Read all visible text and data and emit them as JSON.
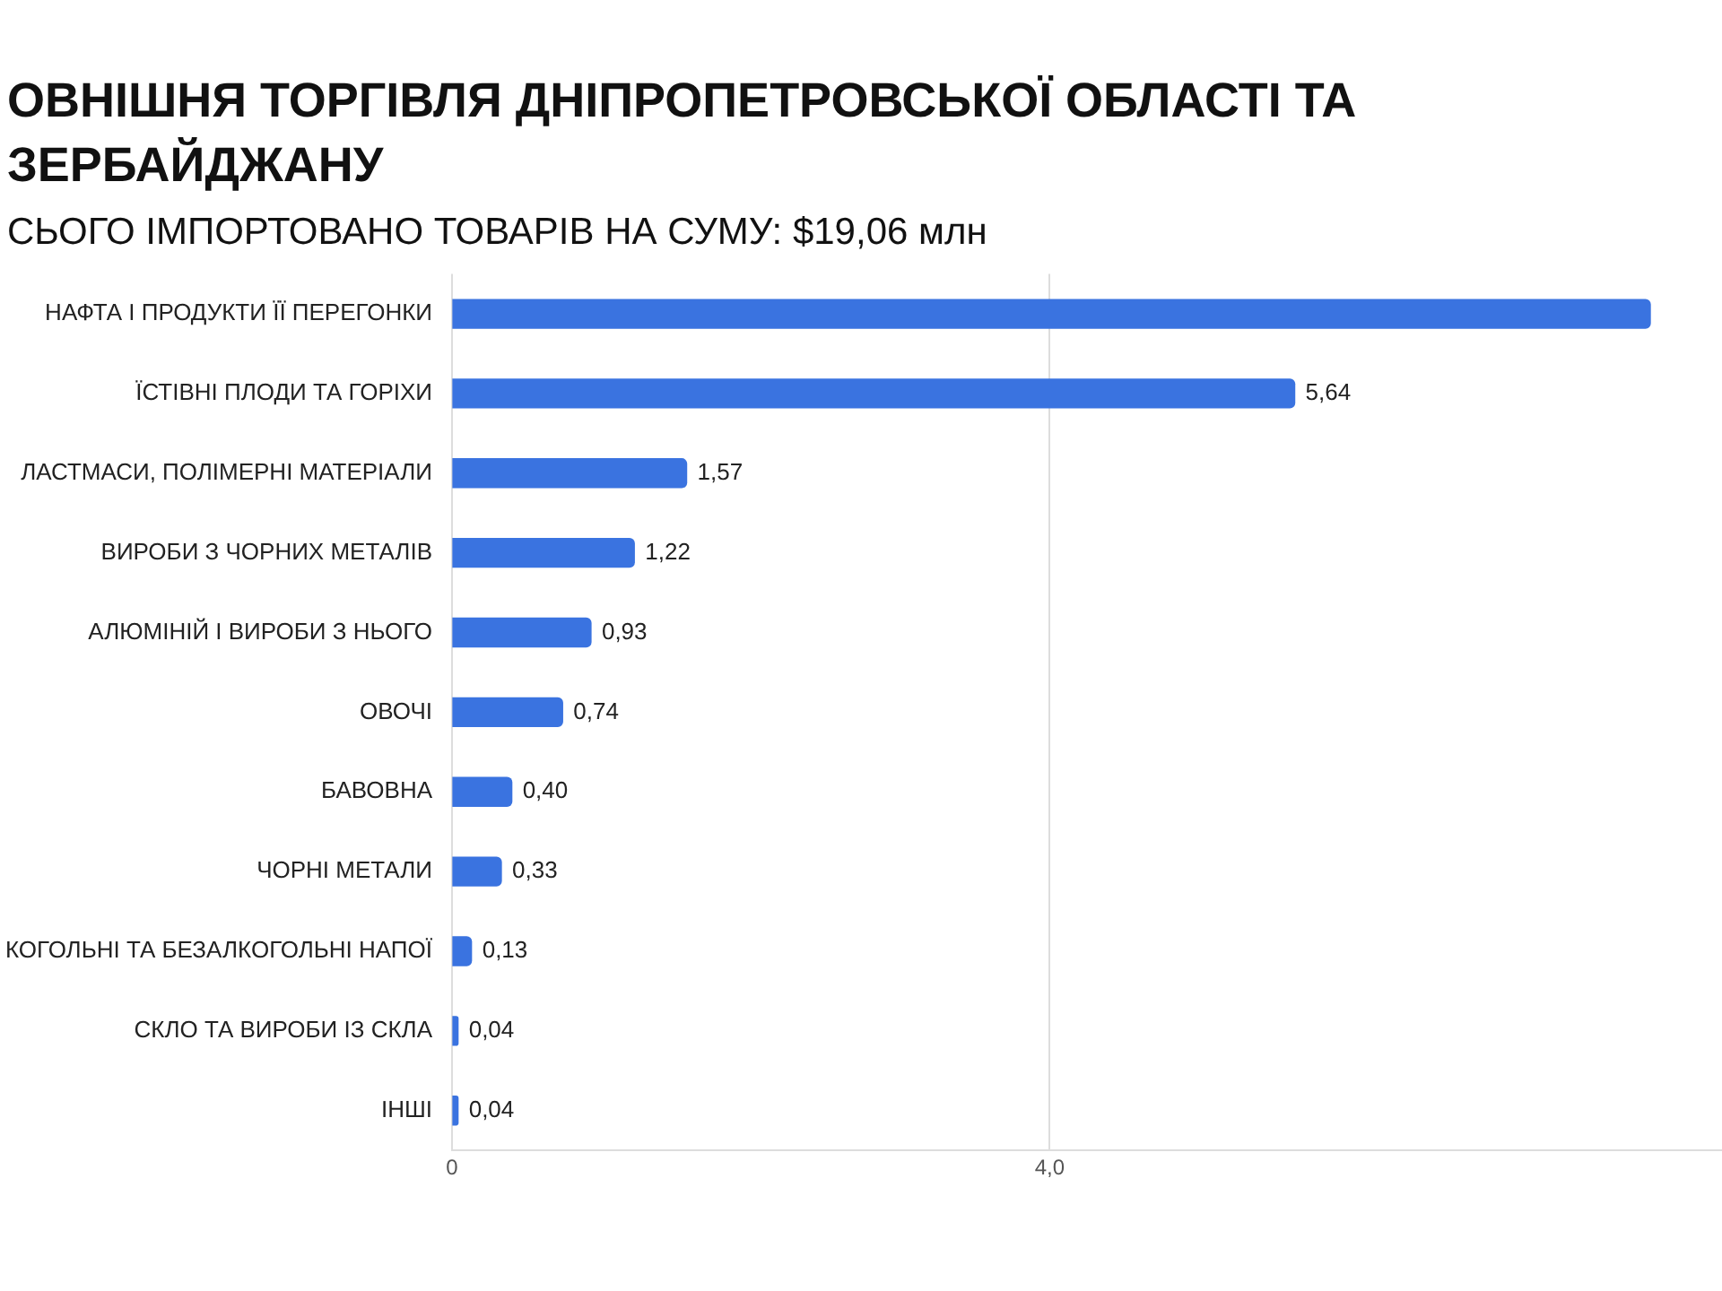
{
  "chart_data": {
    "type": "bar",
    "orientation": "horizontal",
    "title": "ОВНІШНЯ ТОРГІВЛЯ ДНІПРОПЕТРОВСЬКОЇ ОБЛАСТІ ТА ЗЕРБАЙДЖАНУ",
    "subtitle": "СЬОГО ІМПОРТОВАНО ТОВАРІВ НА СУМУ: $19,06 млн",
    "categories": [
      "НАФТА І ПРОДУКТИ ЇЇ ПЕРЕГОНКИ",
      "ЇСТІВНІ ПЛОДИ ТА ГОРІХИ",
      "ЛАСТМАСИ, ПОЛІМЕРНІ МАТЕРІАЛИ",
      "ВИРОБИ З ЧОРНИХ МЕТАЛІВ",
      "АЛЮМІНІЙ І ВИРОБИ З НЬОГО",
      "ОВОЧІ",
      "БАВОВНА",
      "ЧОРНІ МЕТАЛИ",
      "КОГОЛЬНІ ТА БЕЗАЛКОГОЛЬНІ НАПОЇ",
      "СКЛО ТА ВИРОБИ ІЗ СКЛА",
      "ІНШІ"
    ],
    "values": [
      8.02,
      5.64,
      1.57,
      1.22,
      0.93,
      0.74,
      0.4,
      0.33,
      0.13,
      0.04,
      0.04
    ],
    "value_labels": [
      null,
      "5,64",
      "1,57",
      "1,22",
      "0,93",
      "0,74",
      "0,40",
      "0,33",
      "0,13",
      "0,04",
      "0,04"
    ],
    "color": "#3a73e0",
    "xlim": [
      0,
      8.5
    ],
    "xticks": [
      0,
      {
        "value": 4,
        "label": "4,0"
      }
    ],
    "grid": "x"
  }
}
